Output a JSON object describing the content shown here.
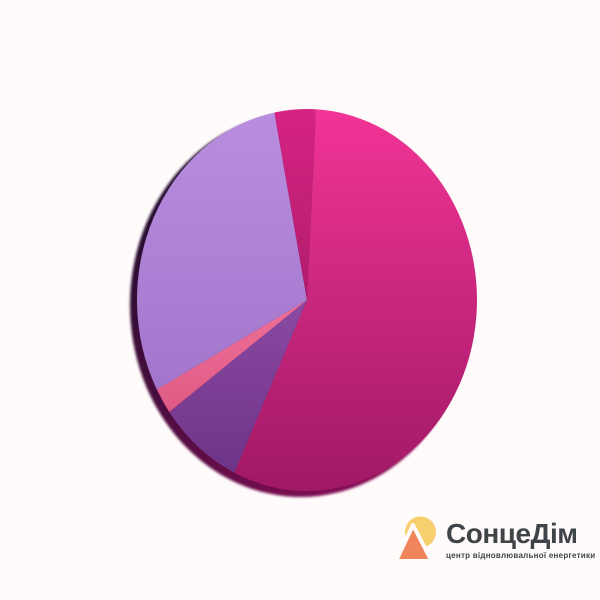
{
  "page": {
    "background": "#FFFBFB"
  },
  "chart_data": {
    "type": "pie",
    "title": "",
    "style": "3d-tilted-disc",
    "legend": "none",
    "labels_visible": false,
    "start_angle_deg": -87,
    "direction": "clockwise",
    "slices": [
      {
        "label": "magenta-large",
        "percent": 56.2,
        "color": "#F23496",
        "color_dark": "#A01965"
      },
      {
        "label": "purple-medium",
        "percent": 8.0,
        "color": "#8A4AA3",
        "color_dark": "#6E3487"
      },
      {
        "label": "rose-sliver",
        "percent": 2.2,
        "color": "#F07199",
        "color_dark": "#DE5A84"
      },
      {
        "label": "lavender-large",
        "percent": 29.7,
        "color": "#B98EDF",
        "color_dark": "#A276CC"
      },
      {
        "label": "crimson-sliver",
        "percent": 3.9,
        "color": "#D62383",
        "color_dark": "#B01C6B"
      }
    ],
    "rim": {
      "color_left": "#22102E",
      "color_bottom": "#8C1158"
    }
  },
  "logo": {
    "title": "СонцеДім",
    "subtitle": "центр відновлювальної енергетики",
    "text_color": "#3F4449",
    "icon": {
      "name": "sun-and-roof",
      "sun_color": "#F7CF6D",
      "triangle_color": "#F0845A"
    }
  }
}
